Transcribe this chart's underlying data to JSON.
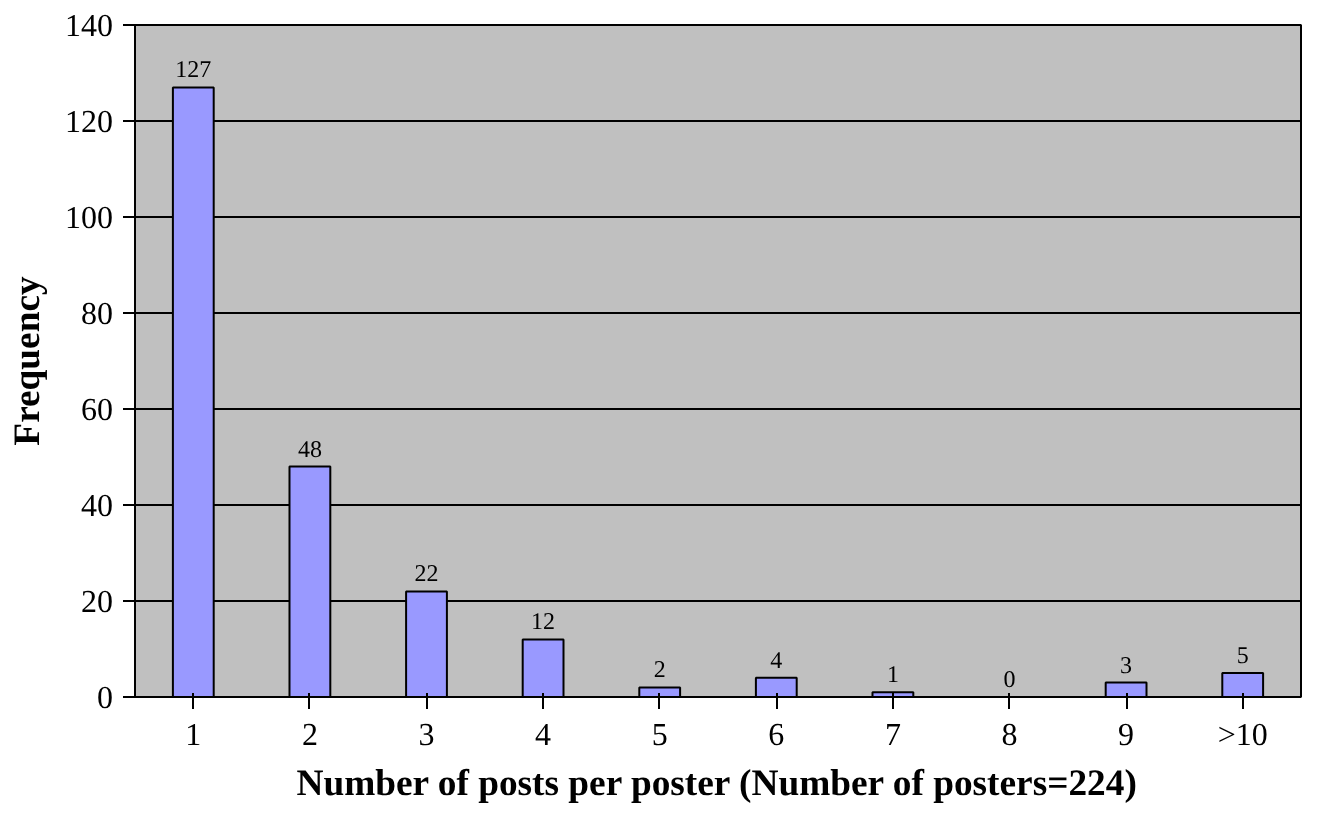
{
  "chart_data": {
    "type": "bar",
    "xlabel": "Number of posts per poster (Number of posters=224)",
    "ylabel": "Frequency",
    "categories": [
      "1",
      "2",
      "3",
      "4",
      "5",
      "6",
      "7",
      "8",
      "9",
      ">10"
    ],
    "values": [
      127,
      48,
      22,
      12,
      2,
      4,
      1,
      0,
      3,
      5
    ],
    "color": "#9999ff",
    "ylim": [
      0,
      140
    ],
    "yticks": [
      0,
      20,
      40,
      60,
      80,
      100,
      120,
      140
    ],
    "grid": "y",
    "data_labels": true
  }
}
